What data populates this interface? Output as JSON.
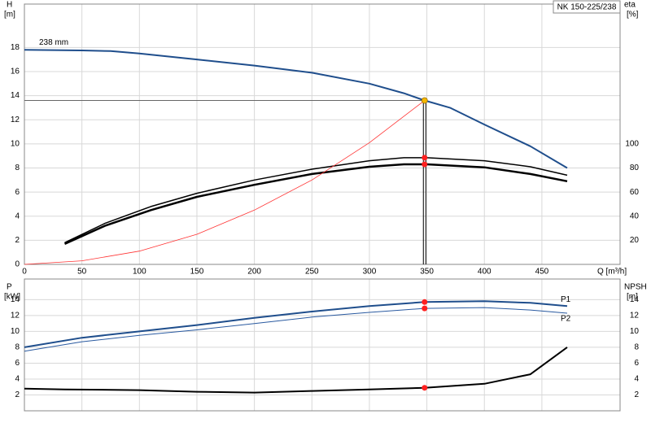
{
  "chart_data": [
    {
      "type": "line",
      "title": "NK 150-225/238",
      "y_label": "H",
      "y_unit": "[m]",
      "y2_label": "eta",
      "y2_unit": "[%]",
      "x_label": "Q [m³/h]",
      "xlim": [
        0,
        518
      ],
      "xticks": [
        0,
        50,
        100,
        150,
        200,
        250,
        300,
        350,
        400,
        450
      ],
      "ylim": [
        0,
        21.6
      ],
      "yticks": [
        0,
        2,
        4,
        6,
        8,
        10,
        12,
        14,
        16,
        18
      ],
      "y2lim": [
        0,
        216
      ],
      "y2ticks": [
        20,
        40,
        60,
        80,
        100
      ],
      "grid": true,
      "series": [
        {
          "name": "238 mm",
          "color": "#1f4e8c",
          "width": 2,
          "x": [
            0,
            50,
            75,
            100,
            150,
            200,
            250,
            300,
            330,
            348,
            370,
            400,
            440,
            472
          ],
          "values": [
            17.8,
            17.75,
            17.7,
            17.5,
            17.0,
            16.5,
            15.9,
            15.0,
            14.2,
            13.6,
            13.0,
            11.6,
            9.8,
            8.0
          ]
        },
        {
          "color": "#000000",
          "width": 1.5,
          "axis": "y2",
          "x": [
            35,
            70,
            110,
            150,
            200,
            250,
            300,
            330,
            350,
            400,
            440,
            472
          ],
          "values": [
            18,
            34,
            48,
            59,
            70,
            79,
            86,
            88.5,
            88.5,
            86,
            81,
            74
          ]
        },
        {
          "color": "#000000",
          "width": 2.5,
          "axis": "y2",
          "x": [
            35,
            70,
            110,
            150,
            200,
            250,
            300,
            330,
            350,
            400,
            440,
            472
          ],
          "values": [
            17,
            32,
            45,
            56,
            66,
            75,
            81,
            83,
            83,
            80.5,
            75,
            69
          ]
        },
        {
          "color": "#ff3333",
          "width": 0.8,
          "x": [
            0,
            50,
            100,
            150,
            200,
            250,
            300,
            348
          ],
          "values": [
            0,
            0.3,
            1.1,
            2.5,
            4.5,
            7.0,
            10.1,
            13.6
          ]
        }
      ],
      "points": [
        {
          "x": 348,
          "y": 13.6,
          "color": "#f5b800",
          "crosshair": true
        },
        {
          "x": 348,
          "y": 88.5,
          "color": "#ff2020",
          "axis": "y2"
        },
        {
          "x": 348,
          "y": 83,
          "color": "#ff2020",
          "axis": "y2"
        }
      ]
    },
    {
      "type": "line",
      "y_label": "P",
      "y_unit": "[kW]",
      "y2_label": "NPSH",
      "y2_unit": "[m]",
      "xlim": [
        0,
        518
      ],
      "ylim": [
        0,
        16.6
      ],
      "yticks": [
        2,
        4,
        6,
        8,
        10,
        12,
        14
      ],
      "y2lim": [
        0,
        16.6
      ],
      "y2ticks": [
        2,
        4,
        6,
        8,
        10,
        12,
        14
      ],
      "grid": true,
      "series": [
        {
          "name": "P1",
          "color": "#1f4e8c",
          "width": 2,
          "x": [
            0,
            50,
            100,
            150,
            200,
            250,
            300,
            348,
            400,
            440,
            472
          ],
          "values": [
            8.0,
            9.2,
            10.0,
            10.8,
            11.7,
            12.5,
            13.2,
            13.7,
            13.8,
            13.6,
            13.2
          ]
        },
        {
          "name": "P2",
          "color": "#2a5aa0",
          "width": 1,
          "x": [
            0,
            50,
            100,
            150,
            200,
            250,
            300,
            348,
            400,
            440,
            472
          ],
          "values": [
            7.5,
            8.7,
            9.5,
            10.2,
            11.0,
            11.8,
            12.4,
            12.9,
            13.0,
            12.7,
            12.3
          ]
        },
        {
          "color": "#000000",
          "width": 2,
          "axis": "y2",
          "x": [
            0,
            35,
            100,
            150,
            200,
            250,
            300,
            348,
            400,
            440,
            472
          ],
          "values": [
            2.8,
            2.7,
            2.6,
            2.4,
            2.3,
            2.5,
            2.7,
            2.9,
            3.4,
            4.6,
            8.0
          ]
        }
      ],
      "points": [
        {
          "x": 348,
          "y": 13.7,
          "color": "#ff2020"
        },
        {
          "x": 348,
          "y": 12.9,
          "color": "#ff2020"
        },
        {
          "x": 348,
          "y": 2.9,
          "color": "#ff2020",
          "axis": "y2"
        }
      ]
    }
  ]
}
